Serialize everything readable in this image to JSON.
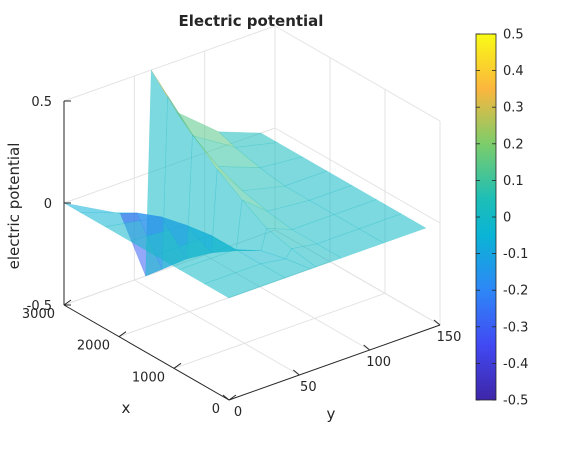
{
  "chart_data": {
    "type": "surface",
    "title": "Electric potential",
    "xlabel": "x",
    "ylabel": "y",
    "zlabel": "electric potential",
    "x_ticks": [
      0,
      1000,
      2000,
      3000
    ],
    "y_ticks": [
      0,
      50,
      100,
      150
    ],
    "z_ticks": [
      -0.5,
      0,
      0.5
    ],
    "xlim": [
      0,
      3000
    ],
    "ylim": [
      0,
      150
    ],
    "zlim": [
      -0.5,
      0.5
    ],
    "colormap": "parula",
    "colorbar": {
      "limits": [
        -0.5,
        0.5
      ],
      "ticks": [
        0.5,
        0.4,
        0.3,
        0.2,
        0.1,
        0,
        -0.1,
        -0.2,
        -0.3,
        -0.4,
        -0.5
      ]
    },
    "grid": true,
    "surface_alpha": 0.55,
    "description_values": {
      "x_grid": [
        0,
        450,
        900,
        1350,
        1800,
        2250,
        2700,
        3000
      ],
      "y_grid": [
        0,
        40,
        58,
        62,
        80,
        110,
        140
      ],
      "z": [
        [
          0,
          0,
          0,
          0,
          0,
          0,
          0
        ],
        [
          0,
          0,
          -0.02,
          0.02,
          0,
          0,
          0
        ],
        [
          0,
          0,
          -0.05,
          0.05,
          0,
          0,
          0
        ],
        [
          0,
          0,
          -0.12,
          0.12,
          0.02,
          0,
          0
        ],
        [
          0,
          -0.02,
          -0.2,
          0.2,
          0.05,
          0,
          0
        ],
        [
          0,
          -0.05,
          -0.3,
          0.3,
          0.1,
          0.02,
          0
        ],
        [
          0,
          -0.1,
          -0.42,
          0.42,
          0.18,
          0.05,
          0
        ],
        [
          0,
          -0.15,
          -0.5,
          0.5,
          0.25,
          0.08,
          0
        ]
      ]
    }
  }
}
